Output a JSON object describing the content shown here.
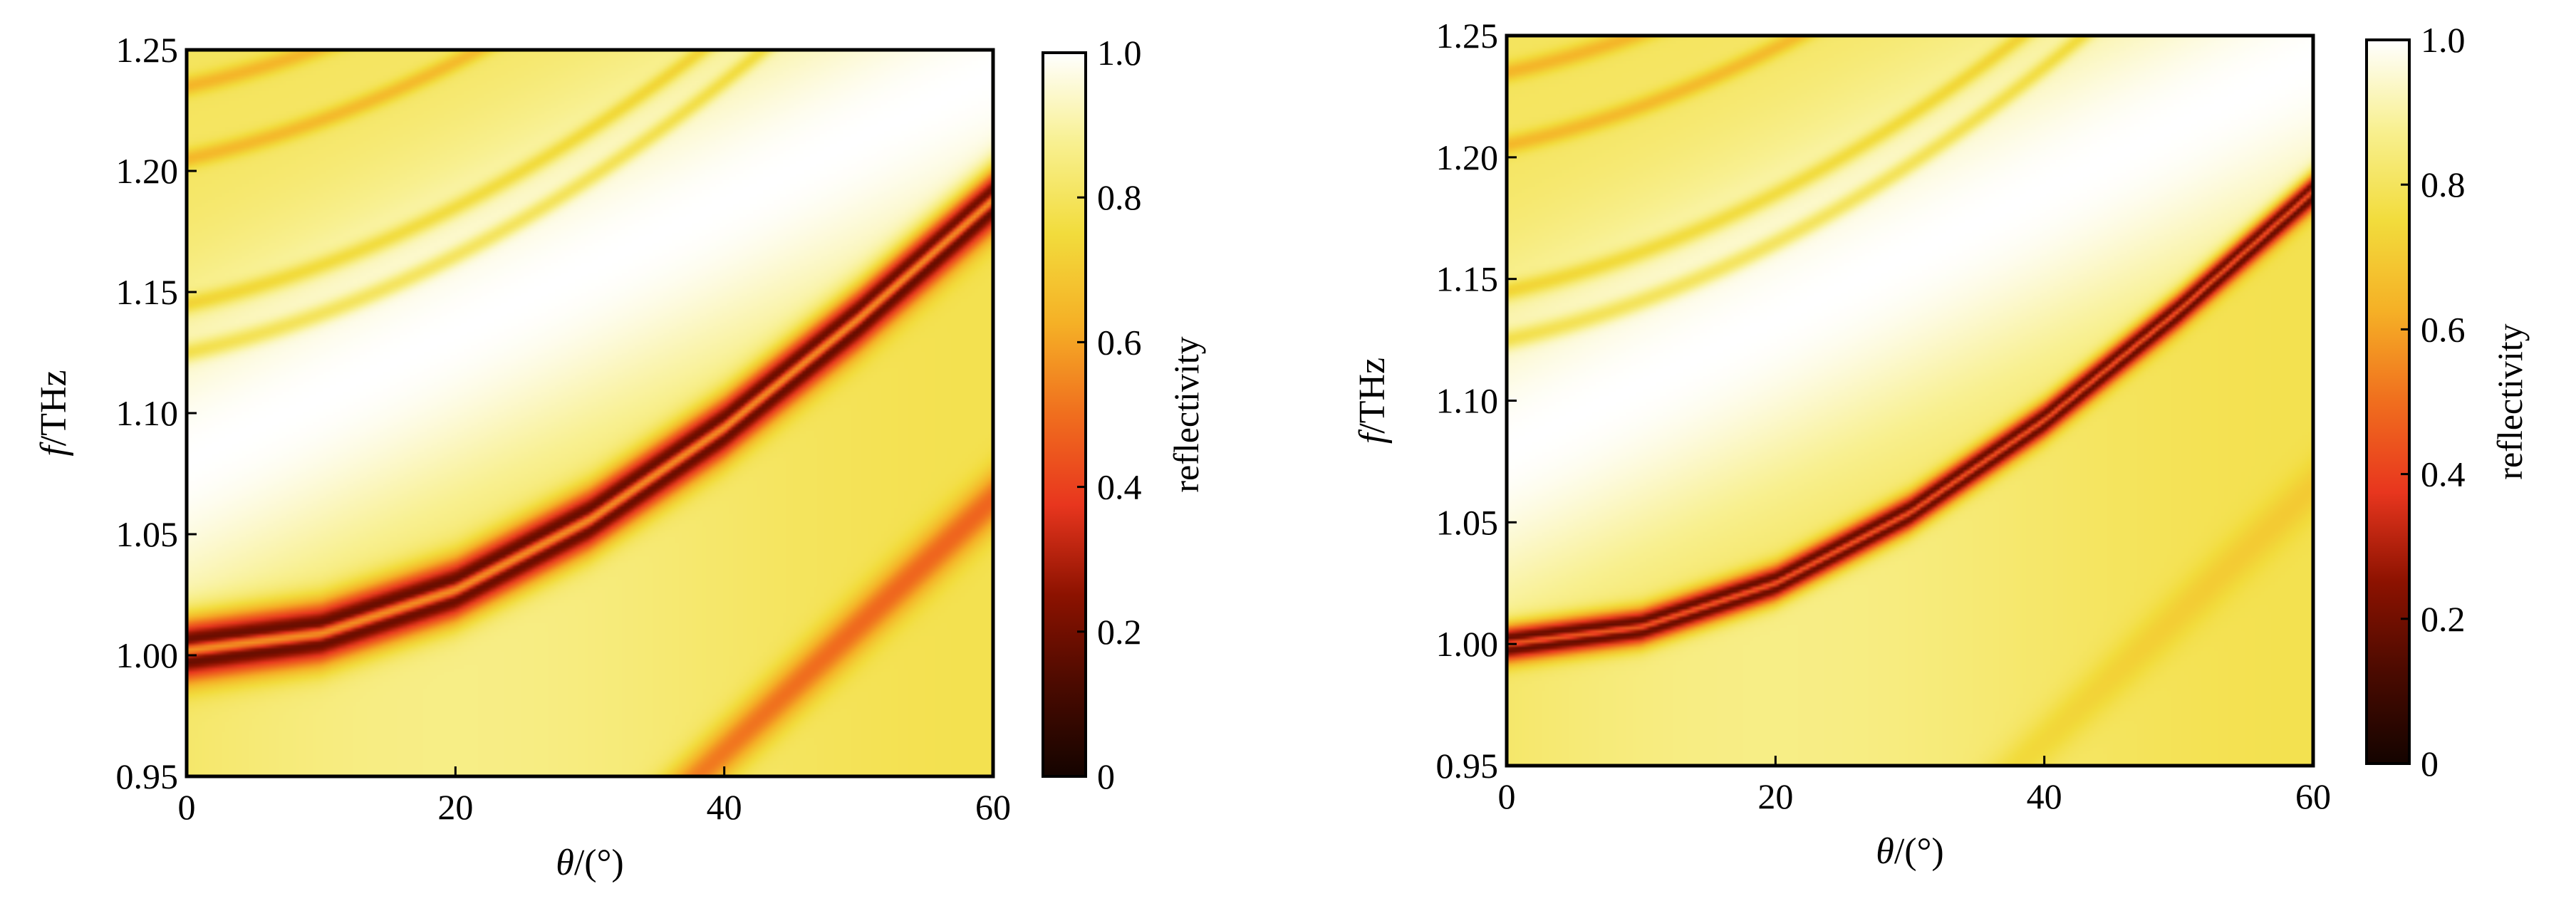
{
  "chart_data": [
    {
      "type": "heatmap",
      "xlabel": "θ/(°)",
      "ylabel": "f/THz",
      "xlim": [
        0,
        60
      ],
      "ylim": [
        0.95,
        1.25
      ],
      "x_ticks": [
        "0",
        "20",
        "40",
        "60"
      ],
      "y_ticks": [
        "0.95",
        "1.00",
        "1.05",
        "1.10",
        "1.15",
        "1.20",
        "1.25"
      ],
      "colorbar": {
        "label": "reflectivity",
        "range": [
          0,
          1.0
        ],
        "ticks": [
          "0",
          "0.2",
          "0.4",
          "0.6",
          "0.8",
          "1.0"
        ],
        "colormap": [
          "#140400",
          "#4a0a00",
          "#8c1200",
          "#e8361e",
          "#f06e1e",
          "#f5b026",
          "#f2dc3c",
          "#f8f090",
          "#ffffff"
        ]
      },
      "features": {
        "resonance_dip_center_THz": [
          {
            "theta": 0,
            "f": 1.002
          },
          {
            "theta": 10,
            "f": 1.009
          },
          {
            "theta": 20,
            "f": 1.027
          },
          {
            "theta": 30,
            "f": 1.056
          },
          {
            "theta": 40,
            "f": 1.094
          },
          {
            "theta": 50,
            "f": 1.139
          },
          {
            "theta": 60,
            "f": 1.188
          }
        ],
        "high_reflectivity_band_center_THz": [
          {
            "theta": 0,
            "f": 1.08
          },
          {
            "theta": 60,
            "f": 1.24
          }
        ],
        "minimum_reflectivity": 0,
        "maximum_reflectivity": 1.0
      }
    },
    {
      "type": "heatmap",
      "xlabel": "θ/(°)",
      "ylabel": "f/THz",
      "xlim": [
        0,
        60
      ],
      "ylim": [
        0.95,
        1.25
      ],
      "x_ticks": [
        "0",
        "20",
        "40",
        "60"
      ],
      "y_ticks": [
        "0.95",
        "1.00",
        "1.05",
        "1.10",
        "1.15",
        "1.20",
        "1.25"
      ],
      "colorbar": {
        "label": "reflectivity",
        "range": [
          0,
          1.0
        ],
        "ticks": [
          "0",
          "0.2",
          "0.4",
          "0.6",
          "0.8",
          "1.0"
        ],
        "colormap": [
          "#140400",
          "#4a0a00",
          "#8c1200",
          "#e8361e",
          "#f06e1e",
          "#f5b026",
          "#f2dc3c",
          "#f8f090",
          "#ffffff"
        ]
      },
      "features": {
        "resonance_dip_center_THz": [
          {
            "theta": 0,
            "f": 1.0
          },
          {
            "theta": 10,
            "f": 1.007
          },
          {
            "theta": 20,
            "f": 1.025
          },
          {
            "theta": 30,
            "f": 1.054
          },
          {
            "theta": 40,
            "f": 1.092
          },
          {
            "theta": 50,
            "f": 1.137
          },
          {
            "theta": 60,
            "f": 1.186
          }
        ],
        "high_reflectivity_band_center_THz": [
          {
            "theta": 0,
            "f": 1.08
          },
          {
            "theta": 60,
            "f": 1.24
          }
        ],
        "minimum_reflectivity": 0,
        "maximum_reflectivity": 1.0
      }
    }
  ]
}
